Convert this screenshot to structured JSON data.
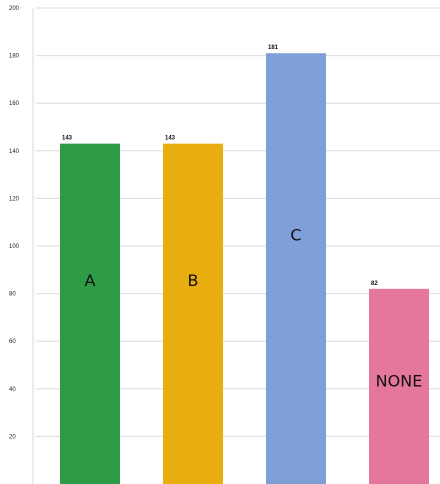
{
  "chart_data": {
    "type": "bar",
    "title": "",
    "xlabel": "",
    "ylabel": "",
    "ylim": [
      0,
      200
    ],
    "yticks": [
      200,
      180,
      160,
      140,
      120,
      100,
      80,
      60,
      40,
      20
    ],
    "categories": [
      "A",
      "B",
      "C",
      "NONE"
    ],
    "values": [
      143,
      143,
      181,
      82
    ],
    "colors": [
      "#2e9b46",
      "#e8ae10",
      "#7f9fd8",
      "#e5779a"
    ],
    "grid": true,
    "legend": "none"
  }
}
